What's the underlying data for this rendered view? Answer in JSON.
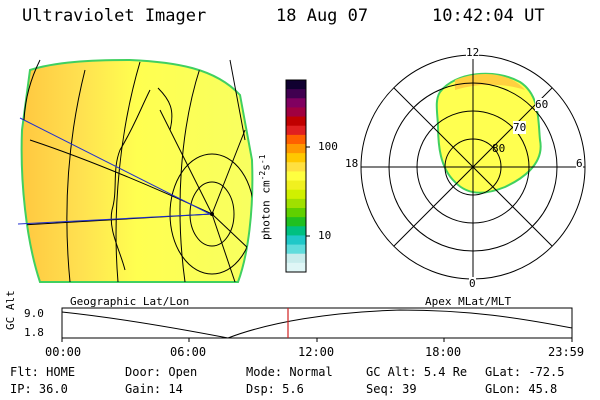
{
  "header": {
    "instrument": "Ultraviolet Imager",
    "date": "18 Aug 07",
    "time": "10:42:04 UT"
  },
  "colorbar": {
    "unit_label": "photon cm",
    "unit_exp1": "-2",
    "unit_mid": "s",
    "unit_exp2": "-1",
    "tick_100": "100",
    "tick_10": "10",
    "colors": [
      "#dff6f6",
      "#c8ecec",
      "#60dcdc",
      "#20c8c8",
      "#00c080",
      "#20c020",
      "#60d000",
      "#a0e000",
      "#d0f000",
      "#f0f020",
      "#ffff40",
      "#ffe040",
      "#ffc800",
      "#ff9800",
      "#ff6000",
      "#e02020",
      "#c00000",
      "#a00040",
      "#800060",
      "#400050",
      "#100030"
    ],
    "accent_low": "#e8f6f6"
  },
  "map_left": {
    "label": "Geographic Lat/Lon",
    "fill_main": "#ffff50",
    "fill_warm": "#ffd040",
    "fill_edge": "#f0f060",
    "outline": "#40d060"
  },
  "polar_right": {
    "label": "Apex MLat/MLT",
    "mlt_12": "12",
    "mlt_18": "18",
    "mlt_6": "6",
    "mlt_0": "0",
    "lat_60": "60",
    "lat_70": "70",
    "lat_80": "80"
  },
  "orbit_plot": {
    "axis_label": "GC Alt",
    "y_top": "9.0",
    "y_bottom": "1.8",
    "x_ticks": [
      "00:00",
      "06:00",
      "12:00",
      "18:00",
      "23:59"
    ],
    "marker_color": "#d02020"
  },
  "status": {
    "row1": [
      {
        "label": "Flt:",
        "value": "HOME"
      },
      {
        "label": "Door:",
        "value": "Open"
      },
      {
        "label": "Mode:",
        "value": "Normal"
      },
      {
        "label": "GC Alt:",
        "value": "5.4 Re"
      },
      {
        "label": "GLat:",
        "value": "-72.5"
      }
    ],
    "row2": [
      {
        "label": "IP:",
        "value": "36.0"
      },
      {
        "label": "Gain:",
        "value": "14"
      },
      {
        "label": "Dsp:",
        "value": "5.6"
      },
      {
        "label": "Seq:",
        "value": "39"
      },
      {
        "label": "GLon:",
        "value": "45.8"
      }
    ]
  }
}
